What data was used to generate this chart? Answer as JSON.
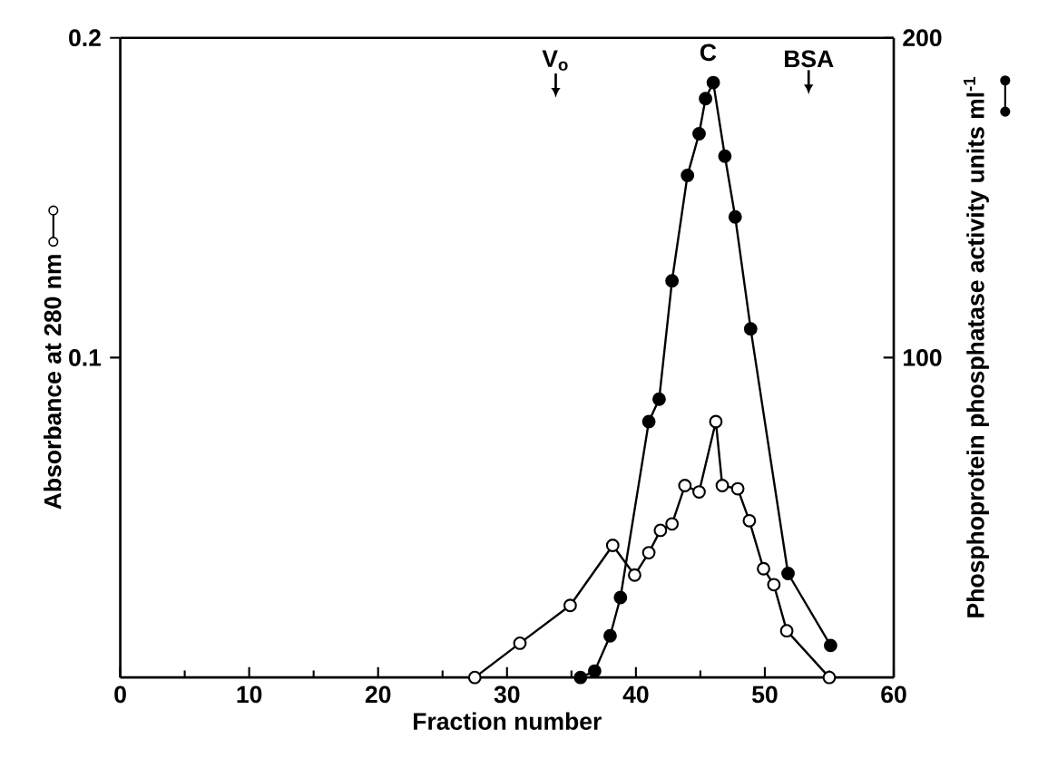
{
  "chart_data": {
    "type": "line",
    "xlabel": "Fraction number",
    "ylabel": "Absorbance at 280 nm",
    "y2label": "Phosphoprotein phosphatase activity units ml$^{-1}$",
    "xlim": [
      0,
      60
    ],
    "xticks": [
      0,
      10,
      20,
      30,
      40,
      50,
      60
    ],
    "ylim": [
      0,
      0.2
    ],
    "yticks": [
      0.1,
      0.2
    ],
    "y2lim": [
      0,
      200
    ],
    "y2ticks": [
      100,
      200
    ],
    "marker": "circle",
    "grid": false,
    "series": [
      {
        "color": "#000000",
        "x": [
          27.5,
          31.0,
          34.9,
          38.2,
          39.9,
          41.0,
          41.9,
          42.8,
          43.8,
          44.9,
          46.2,
          46.7,
          47.9,
          48.8,
          49.9,
          50.7,
          51.7,
          55.0
        ],
        "values": [
          0.0,
          0.0107,
          0.0225,
          0.0413,
          0.032,
          0.039,
          0.046,
          0.048,
          0.06,
          0.058,
          0.08,
          0.06,
          0.059,
          0.049,
          0.034,
          0.029,
          0.0146,
          0.0
        ]
      },
      {
        "color": "#000000",
        "axis": "y2",
        "x": [
          35.7,
          36.8,
          38.0,
          38.8,
          41.0,
          41.8,
          42.8,
          44.0,
          44.9,
          45.4,
          46.0,
          46.9,
          47.7,
          48.9,
          51.8,
          55.1
        ],
        "values": [
          0,
          2,
          13,
          25,
          80,
          87,
          124,
          157,
          170,
          181,
          186,
          163,
          144,
          109,
          32.5,
          10
        ]
      }
    ],
    "annotations": [
      "V$_{o}$",
      "C",
      "BSA"
    ]
  }
}
